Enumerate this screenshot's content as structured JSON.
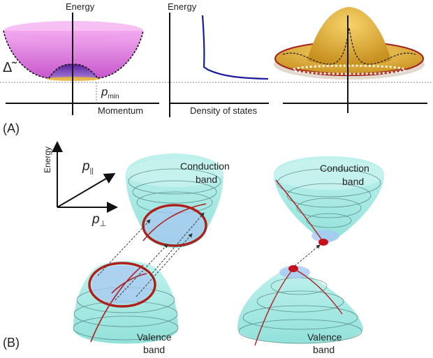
{
  "panel_a": {
    "label": "(A)",
    "energy_label_left": "Energy",
    "energy_label_middle": "Energy",
    "delta_symbol": "Δ̃",
    "p_min_symbol": "p",
    "p_min_subscript": "min",
    "momentum_label": "Momentum",
    "density_label": "Density of states"
  },
  "panel_b": {
    "label": "(B)",
    "energy_axis_label": "Energy",
    "p_parallel_symbol": "p",
    "p_parallel_subscript": "||",
    "p_perp_symbol": "p",
    "p_perp_subscript": "⊥",
    "left_cone": {
      "conduction_line1": "Conduction",
      "conduction_line2": "band",
      "valence_line1": "Valence",
      "valence_line2": "band"
    },
    "right_cone": {
      "conduction_line1": "Conduction",
      "conduction_line2": "band",
      "valence_line1": "Valence",
      "valence_line2": "band"
    }
  },
  "colors": {
    "cone": "#9ee8e2",
    "ring": "#b01e1e",
    "dos_curve": "#1a1aa0",
    "sombrero": "#e7b33a",
    "mexican_hat": "#e58be0"
  }
}
